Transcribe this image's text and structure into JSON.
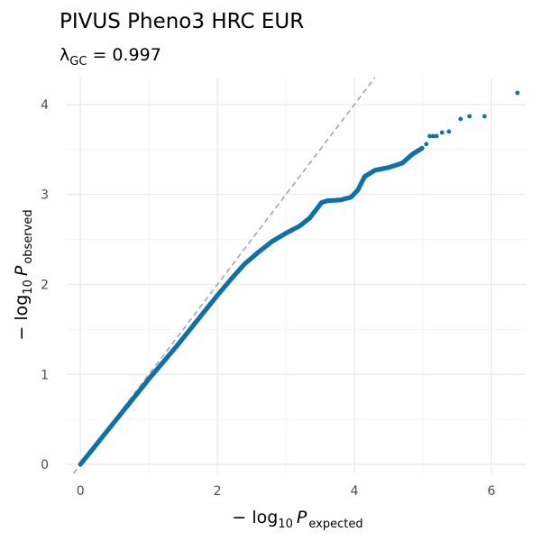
{
  "chart_data": {
    "type": "scatter",
    "title": "PIVUS Pheno3 HRC EUR",
    "subtitle": {
      "symbol": "λ",
      "subscript": "GC",
      "rest": " = 0.997"
    },
    "xlabel": {
      "prefix": "− log",
      "base": "10",
      "var": "P",
      "sub": "expected"
    },
    "ylabel": {
      "prefix": "− log",
      "base": "10",
      "var": "P",
      "sub": "observed"
    },
    "xlim": [
      -0.2,
      6.5
    ],
    "ylim": [
      -0.1,
      4.3
    ],
    "x_ticks": [
      0,
      2,
      4,
      6
    ],
    "x_tick_labels": [
      "0",
      "2",
      "4",
      "6"
    ],
    "y_ticks": [
      0,
      1,
      2,
      3,
      4
    ],
    "y_tick_labels": [
      "0",
      "1",
      "2",
      "3",
      "4"
    ],
    "grid": true,
    "reference_line": "y = x",
    "point_color": "#1170a8",
    "curve": [
      [
        0.0,
        0.0
      ],
      [
        0.2,
        0.19
      ],
      [
        0.4,
        0.38
      ],
      [
        0.6,
        0.57
      ],
      [
        0.8,
        0.76
      ],
      [
        1.0,
        0.95
      ],
      [
        1.2,
        1.13
      ],
      [
        1.4,
        1.31
      ],
      [
        1.6,
        1.5
      ],
      [
        1.8,
        1.69
      ],
      [
        2.0,
        1.88
      ],
      [
        2.2,
        2.06
      ],
      [
        2.4,
        2.23
      ],
      [
        2.6,
        2.36
      ],
      [
        2.8,
        2.48
      ],
      [
        3.0,
        2.57
      ],
      [
        3.2,
        2.65
      ],
      [
        3.35,
        2.74
      ],
      [
        3.45,
        2.84
      ],
      [
        3.52,
        2.91
      ],
      [
        3.6,
        2.93
      ],
      [
        3.8,
        2.94
      ],
      [
        3.95,
        2.97
      ],
      [
        4.05,
        3.05
      ],
      [
        4.15,
        3.2
      ],
      [
        4.3,
        3.27
      ],
      [
        4.5,
        3.3
      ],
      [
        4.7,
        3.35
      ],
      [
        4.85,
        3.45
      ],
      [
        5.0,
        3.52
      ]
    ],
    "tail_points": [
      [
        5.05,
        3.56
      ],
      [
        5.1,
        3.65
      ],
      [
        5.15,
        3.65
      ],
      [
        5.2,
        3.65
      ],
      [
        5.28,
        3.69
      ],
      [
        5.38,
        3.7
      ],
      [
        5.55,
        3.84
      ],
      [
        5.68,
        3.87
      ],
      [
        5.9,
        3.87
      ],
      [
        6.38,
        4.13
      ]
    ]
  }
}
